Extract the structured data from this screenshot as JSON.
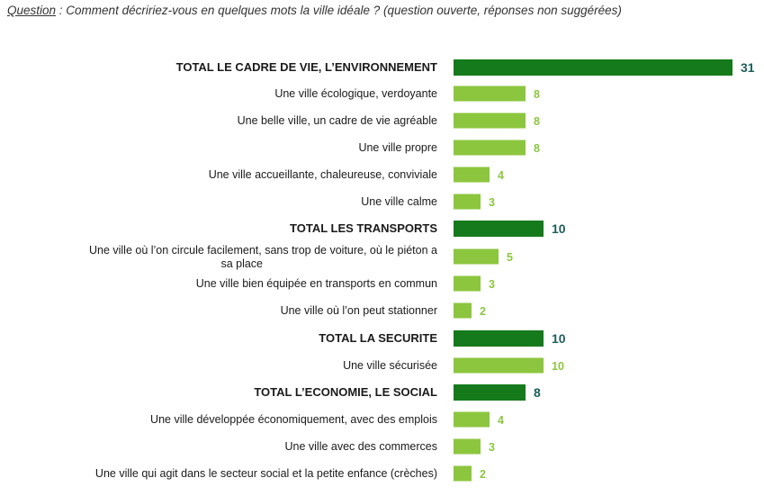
{
  "question": {
    "label": "Question",
    "text": " : Comment décririez-vous en quelques mots la ville idéale ? (question ouverte, réponses non suggérées)"
  },
  "colors": {
    "total_bar": "#157a1b",
    "item_bar": "#8cc63f",
    "total_value": "#1d5e5a",
    "item_value": "#8cc63f"
  },
  "chart_data": {
    "type": "bar",
    "orientation": "horizontal",
    "xlim": [
      0,
      31
    ],
    "categories": [
      {
        "label": "TOTAL LE CADRE DE VIE, L’ENVIRONNEMENT",
        "value": 31,
        "total": true
      },
      {
        "label": "Une ville écologique, verdoyante",
        "value": 8,
        "total": false
      },
      {
        "label": "Une belle ville, un cadre de vie agréable",
        "value": 8,
        "total": false
      },
      {
        "label": "Une ville propre",
        "value": 8,
        "total": false
      },
      {
        "label": "Une ville accueillante, chaleureuse, conviviale",
        "value": 4,
        "total": false
      },
      {
        "label": "Une ville calme",
        "value": 3,
        "total": false
      },
      {
        "label": "TOTAL LES TRANSPORTS",
        "value": 10,
        "total": true
      },
      {
        "label": "Une ville où l’on circule facilement, sans trop de voiture, où le piéton a sa place",
        "value": 5,
        "total": false
      },
      {
        "label": "Une ville bien équipée en transports en commun",
        "value": 3,
        "total": false
      },
      {
        "label": "Une ville où l’on peut stationner",
        "value": 2,
        "total": false
      },
      {
        "label": "TOTAL LA SECURITE",
        "value": 10,
        "total": true
      },
      {
        "label": "Une ville sécurisée",
        "value": 10,
        "total": false
      },
      {
        "label": "TOTAL L’ECONOMIE, LE SOCIAL",
        "value": 8,
        "total": true
      },
      {
        "label": "Une ville développée économiquement, avec des emplois",
        "value": 4,
        "total": false
      },
      {
        "label": "Une ville avec des commerces",
        "value": 3,
        "total": false
      },
      {
        "label": "Une ville qui agit dans le secteur social et la petite enfance (crèches)",
        "value": 2,
        "total": false
      }
    ]
  }
}
